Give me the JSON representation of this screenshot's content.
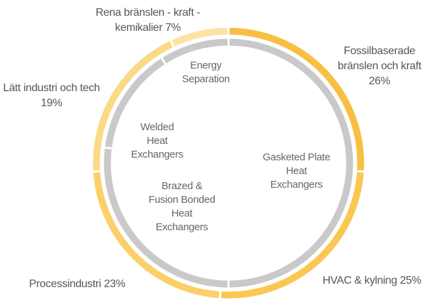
{
  "chart_data": {
    "type": "donut",
    "outer": {
      "categories": [
        "Fossilbaserade bränslen och kraft",
        "HVAC & kylning",
        "Processindustri",
        "Lätt industri och tech",
        "Rena bränslen - kraft - kemikalier"
      ],
      "values": [
        26,
        25,
        23,
        19,
        7
      ],
      "value_labels": [
        "26%",
        "25%",
        "23%",
        "19%",
        "7%"
      ],
      "colors": [
        "#f8bf45",
        "#fac852",
        "#fbd06a",
        "#fcd985",
        "#fde2a3"
      ]
    },
    "inner": {
      "categories": [
        "Gasketed Plate Heat Exchangers",
        "Brazed & Fusion Bonded Heat Exchangers",
        "Welded Heat Exchangers",
        "Energy Separation"
      ],
      "values": [
        50,
        27,
        14,
        9
      ],
      "color": "#c9c9c9"
    }
  }
}
